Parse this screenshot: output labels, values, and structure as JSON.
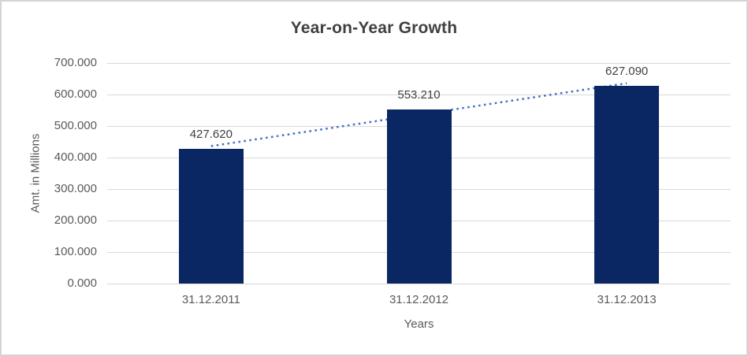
{
  "chart_data": {
    "type": "bar",
    "title": "Year-on-Year Growth",
    "xlabel": "Years",
    "ylabel": "Amt. in Millions",
    "categories": [
      "31.12.2011",
      "31.12.2012",
      "31.12.2013"
    ],
    "values": [
      427.62,
      553.21,
      627.09
    ],
    "data_labels": [
      "427.620",
      "553.210",
      "627.090"
    ],
    "ylim": [
      0,
      700
    ],
    "y_tick_step": 100,
    "y_tick_labels": [
      "0.000",
      "100.000",
      "200.000",
      "300.000",
      "400.000",
      "500.000",
      "600.000",
      "700.000"
    ],
    "grid": true,
    "legend": "none",
    "trendline": {
      "type": "linear",
      "style": "dotted",
      "color": "#4472c4"
    },
    "colors": {
      "bar": "#0a2663",
      "gridline": "#d9d9d9",
      "title_text": "#404040",
      "axis_text": "#595959",
      "data_label_text": "#404040",
      "frame_border": "#d4d4d4",
      "background": "#ffffff"
    }
  }
}
